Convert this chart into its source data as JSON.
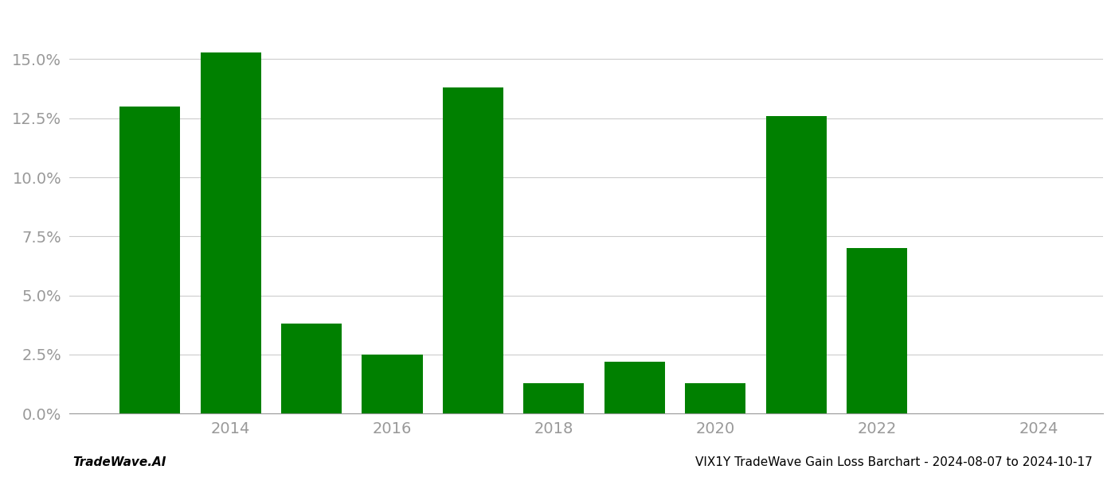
{
  "years": [
    2013,
    2014,
    2015,
    2016,
    2017,
    2018,
    2019,
    2020,
    2021,
    2022,
    2023
  ],
  "values": [
    0.13,
    0.153,
    0.038,
    0.025,
    0.138,
    0.013,
    0.022,
    0.013,
    0.126,
    0.07,
    0.0
  ],
  "bar_color": "#008000",
  "background_color": "#ffffff",
  "xlim": [
    2012.0,
    2024.8
  ],
  "ylim": [
    0,
    0.17
  ],
  "xticks": [
    2014,
    2016,
    2018,
    2020,
    2022,
    2024
  ],
  "yticks": [
    0.0,
    0.025,
    0.05,
    0.075,
    0.1,
    0.125,
    0.15
  ],
  "grid_color": "#cccccc",
  "bar_width": 0.75,
  "footer_left": "TradeWave.AI",
  "footer_right": "VIX1Y TradeWave Gain Loss Barchart - 2024-08-07 to 2024-10-17",
  "footer_fontsize": 11,
  "tick_fontsize": 14,
  "axis_color": "#999999"
}
